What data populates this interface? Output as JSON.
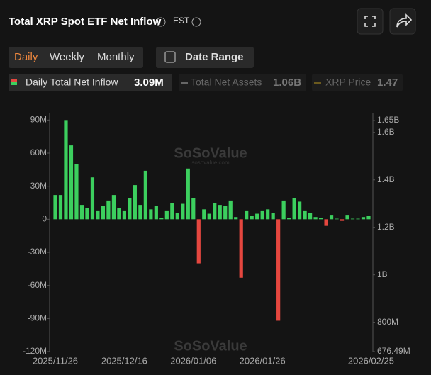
{
  "ui": {
    "title": "Total XRP Spot ETF Net Inflow",
    "timezone": "EST",
    "tabs": [
      "Daily",
      "Weekly",
      "Monthly"
    ],
    "date_button": "Date Range",
    "legend": [
      {
        "name": "Daily Total Net Inflow",
        "value": "3.09M"
      },
      {
        "name": "Total Net Assets",
        "value": "1.06B"
      },
      {
        "name": "XRP Price",
        "value": "1.47"
      }
    ]
  },
  "chart_data": {
    "type": "bar",
    "watermark": "SoSoValue",
    "watermark_sub": "sosovalue.com",
    "categories": [
      "2025/11/26",
      null,
      null,
      null,
      null,
      null,
      null,
      null,
      null,
      null,
      null,
      null,
      null,
      "2025/12/16",
      null,
      null,
      null,
      null,
      null,
      null,
      null,
      null,
      null,
      null,
      null,
      null,
      "2026/01/06",
      null,
      null,
      null,
      null,
      null,
      null,
      null,
      null,
      null,
      null,
      null,
      null,
      "2026/01/26",
      null,
      null,
      null,
      null,
      null,
      null,
      null,
      null,
      null,
      null,
      null,
      null,
      null,
      null,
      null,
      null,
      null,
      null,
      null,
      "2026/02/25"
    ],
    "series": [
      {
        "name": "Daily Total Net Inflow",
        "color": "#3ccf5e",
        "negative_color": "#e5473f",
        "values": [
          22,
          22,
          90,
          67,
          50,
          13,
          10,
          38,
          8,
          12,
          17,
          22,
          10,
          8,
          19,
          31,
          13,
          44,
          9,
          12,
          1,
          8,
          15,
          6,
          14,
          46,
          19,
          -40,
          9,
          5,
          15,
          13,
          12,
          17,
          2,
          -53,
          8,
          3,
          5,
          8,
          9,
          6,
          -92,
          17,
          1,
          19,
          16,
          8,
          6,
          2,
          1,
          -6,
          4,
          0.5,
          -1.5,
          4,
          0.5,
          0.5,
          2,
          3.09
        ]
      }
    ],
    "ylim": [
      -120,
      96
    ],
    "yticks": [
      {
        "value": -120,
        "label": "-120M"
      },
      {
        "value": -90,
        "label": "-90M"
      },
      {
        "value": -60,
        "label": "-60M"
      },
      {
        "value": -30,
        "label": "-30M"
      },
      0,
      {
        "value": 30,
        "label": "30M"
      },
      {
        "value": 60,
        "label": "60M"
      },
      {
        "value": 90,
        "label": "90M"
      }
    ],
    "y2lim": [
      676.49,
      1680
    ],
    "y2ticks": [
      {
        "value": 676.49,
        "label": "676.49M"
      },
      {
        "value": 800,
        "label": "800M"
      },
      {
        "value": 1000,
        "label": "1B"
      },
      {
        "value": 1200,
        "label": "1.2B"
      },
      {
        "value": 1400,
        "label": "1.4B"
      },
      {
        "value": 1600,
        "label": "1.6B"
      },
      {
        "value": 1650,
        "label": "1.65B"
      }
    ]
  }
}
